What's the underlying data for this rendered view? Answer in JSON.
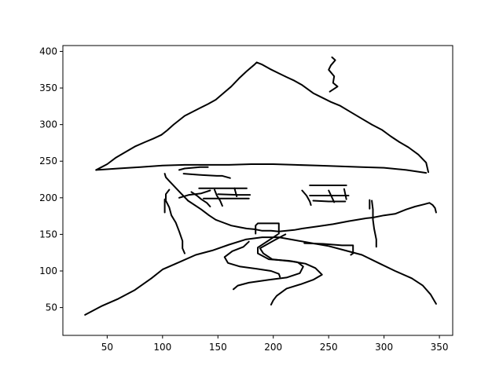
{
  "chart_data": {
    "type": "line",
    "title": "",
    "xlabel": "",
    "ylabel": "",
    "xlim": [
      10,
      362
    ],
    "ylim": [
      12,
      408
    ],
    "grid": false,
    "x_ticks": [
      50,
      100,
      150,
      200,
      250,
      300,
      350
    ],
    "y_ticks": [
      50,
      100,
      150,
      200,
      250,
      300,
      350,
      400
    ],
    "line_color": "#000000",
    "series": [
      {
        "x": [
          40,
          50,
          58,
          66,
          75,
          84,
          92,
          99,
          104,
          110,
          120,
          133,
          141,
          148,
          155,
          162,
          169,
          176,
          183,
          185,
          190,
          197,
          205,
          212,
          219,
          226,
          236,
          244,
          252,
          260,
          270,
          280,
          289,
          298,
          306,
          314,
          322,
          331,
          338,
          340
        ],
        "y": [
          238,
          246,
          255,
          262,
          270,
          276,
          281,
          286,
          292,
          300,
          312,
          322,
          328,
          334,
          343,
          352,
          363,
          373,
          382,
          385,
          382,
          376,
          370,
          365,
          360,
          354,
          343,
          337,
          331,
          326,
          317,
          308,
          300,
          293,
          284,
          276,
          269,
          259,
          248,
          235
        ]
      },
      {
        "x": [
          40,
          60,
          80,
          100,
          120,
          140,
          160,
          180,
          200,
          220,
          240,
          260,
          280,
          300,
          320,
          338
        ],
        "y": [
          238,
          240,
          242,
          244,
          245,
          245,
          245,
          246,
          246,
          245,
          244,
          243,
          242,
          241,
          238,
          234
        ]
      },
      {
        "x": [
          228,
          245,
          262,
          272,
          272,
          270
        ],
        "y": [
          138,
          137,
          135,
          135,
          124,
          122
        ]
      },
      {
        "x": [
          253,
          256,
          252,
          250,
          255,
          254,
          258,
          251
        ],
        "y": [
          392,
          388,
          381,
          375,
          366,
          357,
          352,
          345
        ]
      },
      {
        "x": [
          102,
          103,
          106,
          111,
          116,
          123,
          135,
          142,
          148,
          155,
          162,
          169,
          176,
          183,
          190,
          198,
          205,
          212,
          219,
          226,
          240,
          254,
          268,
          276,
          284,
          290,
          300,
          310,
          320,
          328,
          336,
          341,
          344,
          346,
          347
        ],
        "y": [
          233,
          228,
          223,
          215,
          207,
          196,
          184,
          176,
          170,
          166,
          162,
          160,
          158,
          157,
          155,
          155,
          154,
          155,
          156,
          158,
          161,
          164,
          168,
          170,
          172,
          173,
          176,
          178,
          184,
          188,
          191,
          193,
          190,
          186,
          180
        ]
      },
      {
        "x": [
          30,
          45,
          60,
          75,
          90,
          100,
          115,
          130,
          145,
          160,
          175,
          190,
          205,
          220,
          235,
          250,
          265,
          280,
          295,
          310,
          325,
          335,
          342,
          347
        ],
        "y": [
          40,
          52,
          62,
          74,
          90,
          102,
          112,
          122,
          128,
          136,
          143,
          146,
          146,
          142,
          138,
          134,
          128,
          122,
          111,
          100,
          90,
          80,
          68,
          55
        ]
      },
      {
        "x": [
          178,
          173,
          163,
          156,
          159,
          170,
          185,
          198,
          205,
          206
        ],
        "y": [
          140,
          133,
          127,
          119,
          111,
          106,
          103,
          100,
          96,
          92
        ]
      },
      {
        "x": [
          204,
          196,
          186,
          186,
          196,
          214,
          222,
          227,
          224,
          212,
          196,
          178,
          168,
          164
        ],
        "y": [
          150,
          142,
          132,
          124,
          116,
          114,
          112,
          106,
          97,
          91,
          88,
          84,
          80,
          75
        ]
      },
      {
        "x": [
          211,
          201,
          188,
          191,
          199,
          217,
          229,
          238,
          244,
          236,
          225,
          212,
          203,
          200,
          198
        ],
        "y": [
          150,
          142,
          131,
          124,
          116,
          113,
          110,
          104,
          95,
          88,
          82,
          76,
          66,
          60,
          54
        ]
      },
      {
        "x": [
          184,
          184,
          186,
          198,
          205,
          205
        ],
        "y": [
          151,
          162,
          165,
          165,
          165,
          151
        ]
      },
      {
        "x": [
          106,
          103,
          103,
          106,
          108,
          112,
          115,
          118,
          118,
          120
        ],
        "y": [
          211,
          205,
          196,
          187,
          176,
          166,
          154,
          141,
          131,
          124
        ]
      },
      {
        "x": [
          102,
          102
        ],
        "y": [
          180,
          198
        ]
      },
      {
        "x": [
          287,
          287
        ],
        "y": [
          185,
          197
        ]
      },
      {
        "x": [
          289,
          290,
          290,
          291,
          293,
          293
        ],
        "y": [
          196,
          184,
          170,
          158,
          143,
          133
        ]
      },
      {
        "x": [
          115,
          124,
          135,
          143
        ],
        "y": [
          200,
          204,
          206,
          210
        ]
      },
      {
        "x": [
          115,
          120,
          127,
          134,
          141
        ],
        "y": [
          238,
          240,
          241,
          242,
          242
        ]
      },
      {
        "x": [
          119,
          136,
          149,
          154,
          161
        ],
        "y": [
          233,
          231,
          230,
          230,
          227
        ]
      },
      {
        "x": [
          126,
          131,
          135,
          140,
          143
        ],
        "y": [
          208,
          203,
          198,
          193,
          188
        ]
      },
      {
        "x": [
          133,
          148,
          163,
          176
        ],
        "y": [
          213,
          213,
          213,
          213
        ]
      },
      {
        "x": [
          137,
          145,
          160,
          178
        ],
        "y": [
          199,
          199,
          199,
          199
        ]
      },
      {
        "x": [
          147,
          149,
          152,
          154
        ],
        "y": [
          211,
          203,
          196,
          189
        ]
      },
      {
        "x": [
          165,
          167
        ],
        "y": [
          213,
          202
        ]
      },
      {
        "x": [
          150,
          168,
          179
        ],
        "y": [
          205,
          204,
          204
        ]
      },
      {
        "x": [
          226,
          230,
          233,
          234
        ],
        "y": [
          210,
          203,
          195,
          190
        ]
      },
      {
        "x": [
          233,
          248,
          266
        ],
        "y": [
          217,
          217,
          217
        ]
      },
      {
        "x": [
          233,
          249,
          268
        ],
        "y": [
          203,
          203,
          203
        ]
      },
      {
        "x": [
          250,
          255
        ],
        "y": [
          210,
          194
        ]
      },
      {
        "x": [
          264,
          266
        ],
        "y": [
          212,
          198
        ]
      },
      {
        "x": [
          236,
          250,
          265
        ],
        "y": [
          196,
          195,
          195
        ]
      }
    ]
  }
}
